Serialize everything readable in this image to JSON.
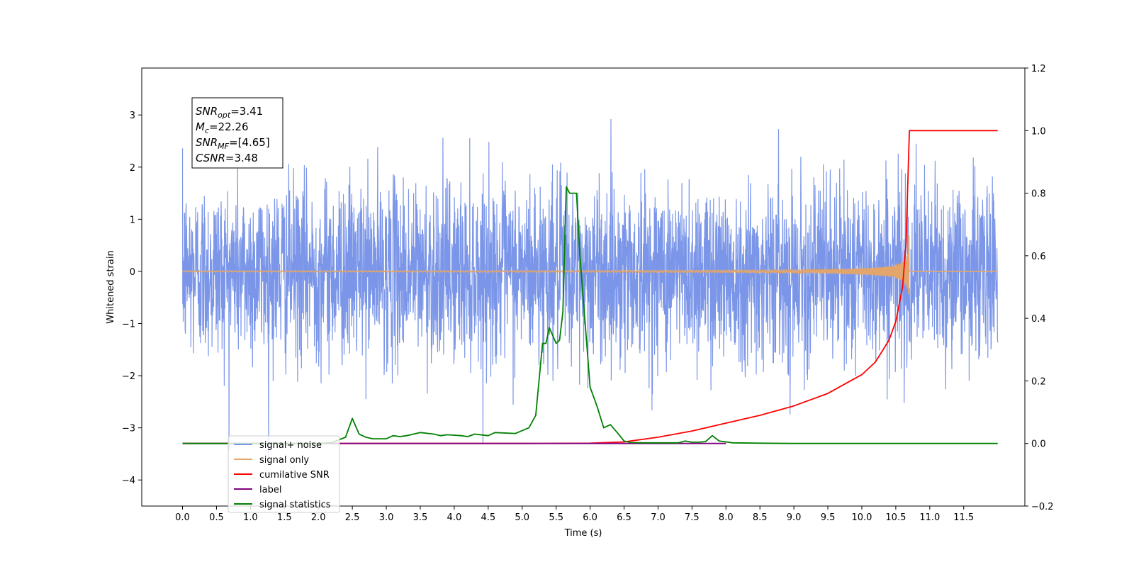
{
  "chart_data": {
    "type": "line",
    "xlabel": "Time (s)",
    "ylabel_left": "Whitened strain",
    "ylabel_right": "",
    "xlim": [
      -0.6,
      12.4
    ],
    "ylim_left": [
      -4.5,
      3.9
    ],
    "ylim_right": [
      -0.2,
      1.2
    ],
    "x_ticks": [
      0.0,
      0.5,
      1.0,
      1.5,
      2.0,
      2.5,
      3.0,
      3.5,
      4.0,
      4.5,
      5.0,
      5.5,
      6.0,
      6.5,
      7.0,
      7.5,
      8.0,
      8.5,
      9.0,
      9.5,
      10.0,
      10.5,
      11.0,
      11.5
    ],
    "x_tick_labels": [
      "0.0",
      "0.5",
      "1.0",
      "1.5",
      "2.0",
      "2.5",
      "3.0",
      "3.5",
      "4.0",
      "4.5",
      "5.0",
      "5.5",
      "6.0",
      "6.5",
      "7.0",
      "7.5",
      "8.0",
      "8.5",
      "9.0",
      "9.5",
      "10.0",
      "10.5",
      "11.0",
      "11.5"
    ],
    "y_ticks_left": [
      -4,
      -3,
      -2,
      -1,
      0,
      1,
      2,
      3
    ],
    "y_tick_labels_left": [
      "−4",
      "−3",
      "−2",
      "−1",
      "0",
      "1",
      "2",
      "3"
    ],
    "y_ticks_right": [
      -0.2,
      0.0,
      0.2,
      0.4,
      0.6,
      0.8,
      1.0,
      1.2
    ],
    "y_tick_labels_right": [
      "−0.2",
      "0.0",
      "0.2",
      "0.4",
      "0.6",
      "0.8",
      "1.0",
      "1.2"
    ],
    "grid": false,
    "legend_position": "lower-left",
    "annotation": {
      "lines": [
        {
          "var": "SNR",
          "sub": "opt",
          "value": "=3.41"
        },
        {
          "var": "M",
          "sub": "c",
          "value": "=22.26"
        },
        {
          "var": "SNR",
          "sub": "MF",
          "value": "=[4.65]"
        },
        {
          "var": "CSNR",
          "sub": "",
          "value": "=3.48"
        }
      ]
    },
    "series": [
      {
        "name": "signal+ noise",
        "axis": "left",
        "color": "#7b96e8",
        "style": "noise",
        "x_range": [
          0.0,
          12.0
        ],
        "typical_amplitude": 1.7,
        "peak_amplitude": 3.55
      },
      {
        "name": "signal only",
        "axis": "left",
        "color": "#e2a66c",
        "style": "chirp",
        "x_range": [
          0.0,
          12.0
        ],
        "merger_time": 10.7,
        "peak_amplitude": 0.7
      },
      {
        "name": "cumilative SNR",
        "axis": "right",
        "color": "#ff0000",
        "style": "line",
        "x": [
          0.0,
          5.0,
          6.0,
          6.5,
          7.0,
          7.5,
          8.0,
          8.5,
          9.0,
          9.5,
          10.0,
          10.2,
          10.4,
          10.5,
          10.6,
          10.65,
          10.7,
          12.0
        ],
        "y": [
          0.0,
          0.0,
          0.001,
          0.005,
          0.02,
          0.04,
          0.065,
          0.09,
          0.12,
          0.16,
          0.22,
          0.26,
          0.33,
          0.39,
          0.5,
          0.64,
          1.0,
          1.0
        ]
      },
      {
        "name": "label",
        "axis": "right",
        "color": "#800080",
        "style": "line",
        "x": [
          0.0,
          8.0
        ],
        "y": [
          0.0,
          0.0
        ]
      },
      {
        "name": "signal statistics",
        "axis": "right",
        "color": "#008000",
        "style": "line",
        "x": [
          0.0,
          2.0,
          2.2,
          2.4,
          2.5,
          2.6,
          2.7,
          2.8,
          2.9,
          3.0,
          3.1,
          3.2,
          3.3,
          3.4,
          3.5,
          3.7,
          3.8,
          3.9,
          4.1,
          4.2,
          4.3,
          4.5,
          4.6,
          4.9,
          5.1,
          5.2,
          5.3,
          5.35,
          5.4,
          5.5,
          5.55,
          5.6,
          5.65,
          5.7,
          5.75,
          5.8,
          5.85,
          6.0,
          6.1,
          6.2,
          6.3,
          6.4,
          6.5,
          6.6,
          6.8,
          7.0,
          7.3,
          7.4,
          7.5,
          7.6,
          7.7,
          7.8,
          7.9,
          8.1,
          8.5,
          9.0,
          12.0
        ],
        "y": [
          0.0,
          0.0,
          0.003,
          0.02,
          0.08,
          0.03,
          0.02,
          0.015,
          0.015,
          0.015,
          0.025,
          0.022,
          0.025,
          0.03,
          0.035,
          0.03,
          0.025,
          0.028,
          0.025,
          0.022,
          0.03,
          0.025,
          0.035,
          0.032,
          0.05,
          0.09,
          0.32,
          0.32,
          0.37,
          0.32,
          0.33,
          0.42,
          0.82,
          0.8,
          0.8,
          0.8,
          0.6,
          0.18,
          0.12,
          0.05,
          0.06,
          0.035,
          0.008,
          0.003,
          0.002,
          0.002,
          0.002,
          0.008,
          0.004,
          0.004,
          0.006,
          0.025,
          0.008,
          0.002,
          0.001,
          0.0,
          0.0
        ]
      }
    ]
  }
}
